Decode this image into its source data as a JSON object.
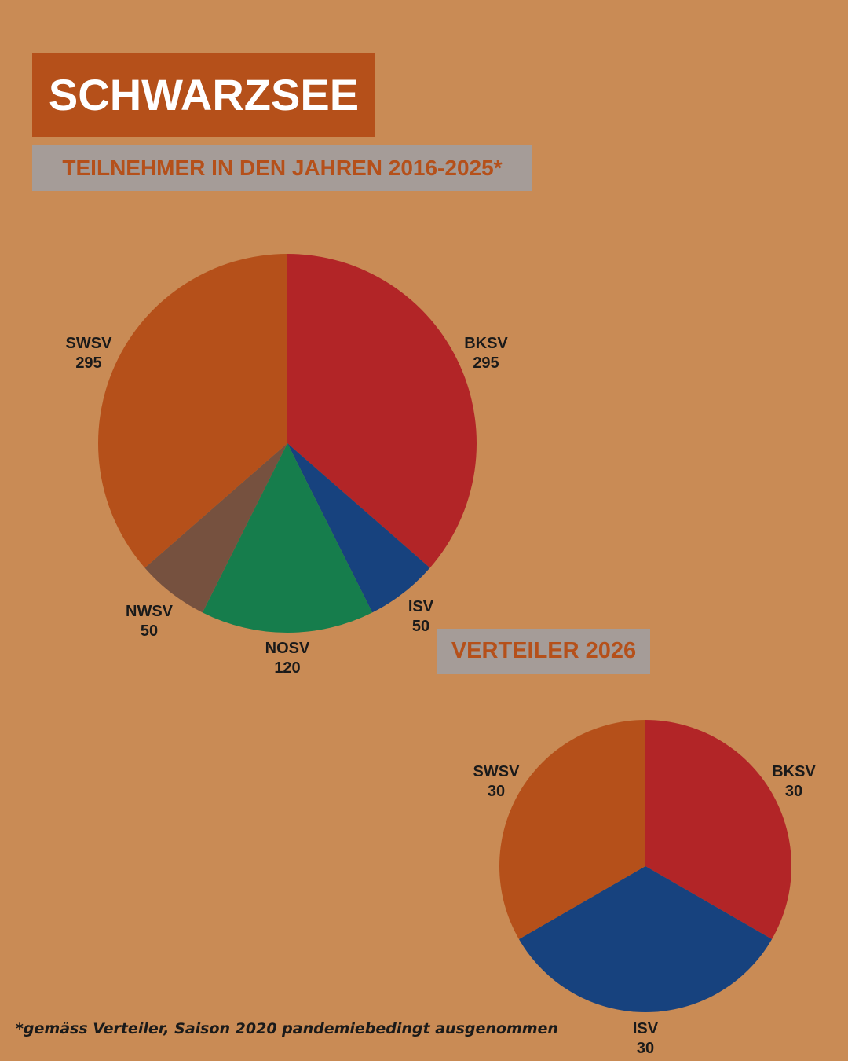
{
  "header": {
    "title": "SCHWARZSEE",
    "subtitle": "TEILNEHMER IN DEN JAHREN 2016-2025*"
  },
  "chart2_heading": "VERTEILER 2026",
  "footnote": "*gemäss Verteiler, Saison 2020 pandemiebedingt ausgenommen",
  "colors": {
    "background": "#c98b55",
    "title_box": "#b5501a",
    "subtitle_box": "#a59c98",
    "BKSV": "#b22527",
    "ISV": "#17427e",
    "NOSV": "#167d4c",
    "NWSV": "#76513f",
    "SWSV": "#b5501a"
  },
  "chart_data": [
    {
      "type": "pie",
      "title": "TEILNEHMER IN DEN JAHREN 2016-2025*",
      "slices": [
        {
          "label": "BKSV",
          "value": 295
        },
        {
          "label": "ISV",
          "value": 50
        },
        {
          "label": "NOSV",
          "value": 120
        },
        {
          "label": "NWSV",
          "value": 50
        },
        {
          "label": "SWSV",
          "value": 295
        }
      ]
    },
    {
      "type": "pie",
      "title": "VERTEILER 2026",
      "slices": [
        {
          "label": "BKSV",
          "value": 30
        },
        {
          "label": "ISV",
          "value": 30
        },
        {
          "label": "SWSV",
          "value": 30
        }
      ]
    }
  ]
}
